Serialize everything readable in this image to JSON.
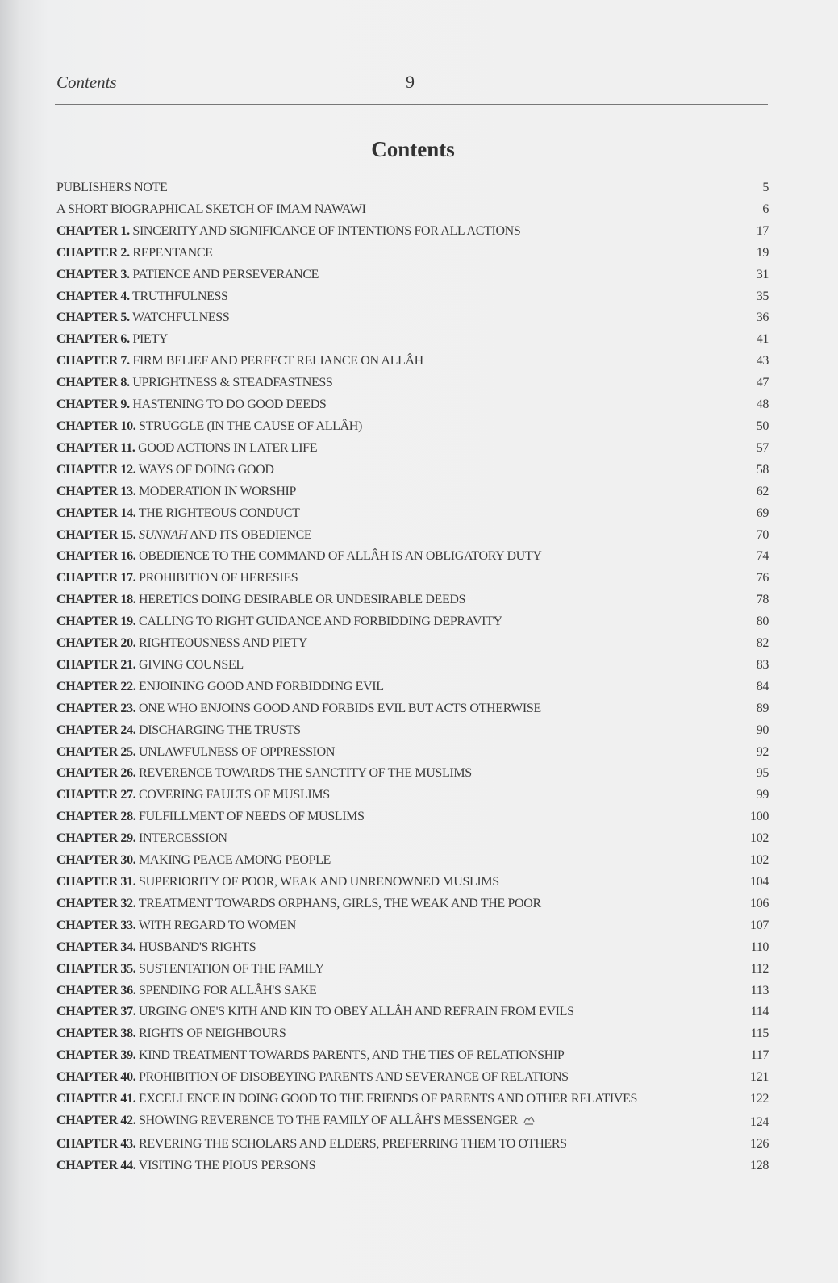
{
  "header": {
    "running_head": "Contents",
    "page_number": "9"
  },
  "title": "Contents",
  "entries": [
    {
      "label": "",
      "title": "PUBLISHERS NOTE",
      "page": "5"
    },
    {
      "label": "",
      "title": "A SHORT BIOGRAPHICAL SKETCH OF IMAM NAWAWI",
      "page": "6"
    },
    {
      "label": "CHAPTER 1.",
      "title": "SINCERITY AND SIGNIFICANCE OF INTENTIONS FOR ALL ACTIONS",
      "page": "17"
    },
    {
      "label": "CHAPTER 2.",
      "title": "REPENTANCE",
      "page": "19"
    },
    {
      "label": "CHAPTER 3.",
      "title": "PATIENCE AND PERSEVERANCE",
      "page": "31"
    },
    {
      "label": "CHAPTER 4.",
      "title": "TRUTHFULNESS",
      "page": "35"
    },
    {
      "label": "CHAPTER 5.",
      "title": "WATCHFULNESS",
      "page": "36"
    },
    {
      "label": "CHAPTER 6.",
      "title": "PIETY",
      "page": "41"
    },
    {
      "label": "CHAPTER 7.",
      "title": "FIRM BELIEF AND PERFECT RELIANCE ON ALLÂH",
      "page": "43"
    },
    {
      "label": "CHAPTER 8.",
      "title": "UPRIGHTNESS & STEADFASTNESS",
      "page": "47"
    },
    {
      "label": "CHAPTER 9.",
      "title": "HASTENING TO DO GOOD DEEDS",
      "page": "48"
    },
    {
      "label": "CHAPTER 10.",
      "title": "STRUGGLE (IN THE CAUSE OF ALLÂH)",
      "page": "50"
    },
    {
      "label": "CHAPTER 11.",
      "title": "GOOD ACTIONS IN LATER LIFE",
      "page": "57"
    },
    {
      "label": "CHAPTER 12.",
      "title": "WAYS OF DOING GOOD",
      "page": "58"
    },
    {
      "label": "CHAPTER 13.",
      "title": "MODERATION IN WORSHIP",
      "page": "62"
    },
    {
      "label": "CHAPTER 14.",
      "title": "THE RIGHTEOUS CONDUCT",
      "page": "69"
    },
    {
      "label": "CHAPTER 15.",
      "title_em": "SUNNAH",
      "title": "AND ITS OBEDIENCE",
      "page": "70"
    },
    {
      "label": "CHAPTER 16.",
      "title": "OBEDIENCE TO THE COMMAND OF ALLÂH IS AN OBLIGATORY DUTY",
      "page": "74"
    },
    {
      "label": "CHAPTER 17.",
      "title": "PROHIBITION OF HERESIES",
      "page": "76"
    },
    {
      "label": "CHAPTER 18.",
      "title": "HERETICS DOING DESIRABLE OR UNDESIRABLE DEEDS",
      "page": "78"
    },
    {
      "label": "CHAPTER 19.",
      "title": "CALLING TO RIGHT GUIDANCE AND FORBIDDING DEPRAVITY",
      "page": "80"
    },
    {
      "label": "CHAPTER 20.",
      "title": "RIGHTEOUSNESS AND PIETY",
      "page": "82"
    },
    {
      "label": "CHAPTER 21.",
      "title": "GIVING COUNSEL",
      "page": "83"
    },
    {
      "label": "CHAPTER 22.",
      "title": "ENJOINING GOOD AND FORBIDDING EVIL",
      "page": "84"
    },
    {
      "label": "CHAPTER 23.",
      "title": "ONE WHO ENJOINS GOOD AND FORBIDS EVIL BUT ACTS OTHERWISE",
      "page": "89"
    },
    {
      "label": "CHAPTER 24.",
      "title": "DISCHARGING THE TRUSTS",
      "page": "90"
    },
    {
      "label": "CHAPTER 25.",
      "title": "UNLAWFULNESS OF OPPRESSION",
      "page": "92"
    },
    {
      "label": "CHAPTER 26.",
      "title": "REVERENCE TOWARDS THE SANCTITY OF THE MUSLIMS",
      "page": "95"
    },
    {
      "label": "CHAPTER 27.",
      "title": "COVERING FAULTS OF MUSLIMS",
      "page": "99"
    },
    {
      "label": "CHAPTER 28.",
      "title": "FULFILLMENT OF NEEDS OF MUSLIMS",
      "page": "100"
    },
    {
      "label": "CHAPTER 29.",
      "title": "INTERCESSION",
      "page": "102"
    },
    {
      "label": "CHAPTER 30.",
      "title": "MAKING PEACE AMONG PEOPLE",
      "page": "102"
    },
    {
      "label": "CHAPTER 31.",
      "title": "SUPERIORITY OF POOR, WEAK AND UNRENOWNED MUSLIMS",
      "page": "104"
    },
    {
      "label": "CHAPTER 32.",
      "title": "TREATMENT TOWARDS ORPHANS, GIRLS, THE WEAK AND THE POOR",
      "page": "106"
    },
    {
      "label": "CHAPTER 33.",
      "title": "WITH REGARD TO WOMEN",
      "page": "107"
    },
    {
      "label": "CHAPTER 34.",
      "title": "HUSBAND'S RIGHTS",
      "page": "110"
    },
    {
      "label": "CHAPTER 35.",
      "title": "SUSTENTATION OF THE FAMILY",
      "page": "112"
    },
    {
      "label": "CHAPTER 36.",
      "title": "SPENDING FOR ALLÂH'S SAKE",
      "page": "113"
    },
    {
      "label": "CHAPTER 37.",
      "title": "URGING ONE'S KITH AND KIN TO OBEY ALLÂH AND REFRAIN FROM EVILS",
      "page": "114"
    },
    {
      "label": "CHAPTER 38.",
      "title": "RIGHTS OF NEIGHBOURS",
      "page": "115"
    },
    {
      "label": "CHAPTER 39.",
      "title": "KIND TREATMENT TOWARDS PARENTS, AND THE TIES OF RELATIONSHIP",
      "page": "117"
    },
    {
      "label": "CHAPTER 40.",
      "title": "PROHIBITION OF DISOBEYING PARENTS AND SEVERANCE OF RELATIONS",
      "page": "121"
    },
    {
      "label": "CHAPTER 41.",
      "title": "EXCELLENCE IN DOING GOOD TO THE FRIENDS OF PARENTS AND OTHER RELATIVES",
      "page": "122",
      "wrap": true
    },
    {
      "label": "CHAPTER 42.",
      "title": "SHOWING REVERENCE TO THE FAMILY OF ALLÂH'S MESSENGER",
      "page": "124",
      "symbol": "pbuh-calligraphy-icon"
    },
    {
      "label": "CHAPTER 43.",
      "title": "REVERING THE SCHOLARS AND ELDERS, PREFERRING THEM TO OTHERS",
      "page": "126"
    },
    {
      "label": "CHAPTER 44.",
      "title": "VISITING THE PIOUS PERSONS",
      "page": "128"
    }
  ]
}
